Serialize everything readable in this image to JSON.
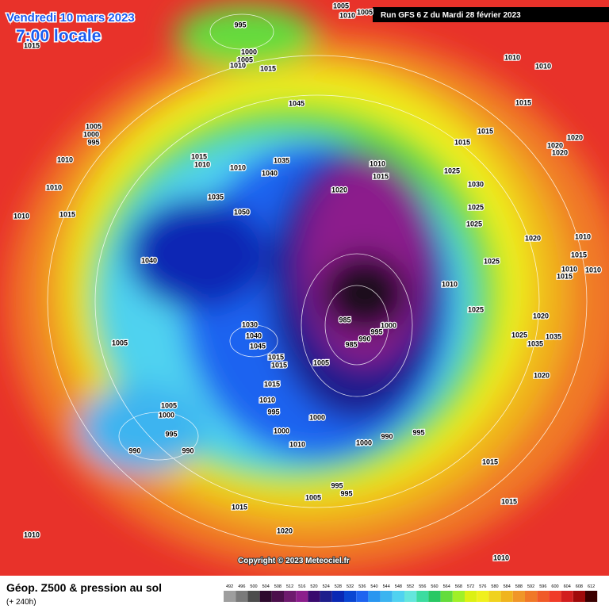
{
  "header": {
    "date": "Vendredi 10 mars 2023",
    "time": "7:00 locale",
    "run": "Run GFS 6 Z du Mardi 28 février 2023"
  },
  "map": {
    "copyright": "Copyright © 2023 Meteociel.fr",
    "isobar_labels": [
      995,
      1000,
      1005,
      1010,
      1015,
      1045,
      1015,
      1005,
      1000,
      995,
      1010,
      1010,
      1010,
      1015,
      1015,
      1010,
      1010,
      1040,
      1035,
      1035,
      1050,
      1040,
      1010,
      1015,
      1020,
      1015,
      1015,
      1025,
      1030,
      1025,
      1025,
      1025,
      1010,
      1025,
      1010,
      1010,
      1015,
      1020,
      1020,
      1020,
      1020,
      1010,
      1015,
      1010,
      1015,
      1010,
      1020,
      1025,
      1035,
      1035,
      1020,
      1030,
      1040,
      1045,
      1015,
      1015,
      1015,
      1005,
      985,
      985,
      990,
      995,
      1000,
      1005,
      1005,
      1000,
      995,
      990,
      990,
      1010,
      995,
      1000,
      1000,
      1010,
      1000,
      990,
      995,
      1015,
      995,
      995,
      1005,
      1015,
      1020,
      1010,
      1015,
      1010,
      1005,
      1010,
      1005
    ]
  },
  "footer": {
    "title": "Géop. Z500 & pression au sol",
    "subtitle": "(+ 240h)"
  },
  "legend": {
    "values": [
      492,
      496,
      500,
      504,
      508,
      512,
      516,
      520,
      524,
      528,
      532,
      536,
      540,
      544,
      548,
      552,
      556,
      560,
      564,
      568,
      572,
      576,
      580,
      584,
      588,
      592,
      596,
      600,
      604,
      608,
      612
    ],
    "colors": [
      "#9e9e9e",
      "#7a7a7a",
      "#4c4c4c",
      "#2d0a2d",
      "#4b0f4b",
      "#6e1a6e",
      "#8c1e8c",
      "#3a0a6e",
      "#1e1e8c",
      "#0a28b4",
      "#0a46d2",
      "#1e64f0",
      "#2896f0",
      "#3cb4f0",
      "#50d2f0",
      "#64e6dc",
      "#3cdca0",
      "#28c864",
      "#64dc3c",
      "#a0f028",
      "#dcf014",
      "#f0f01e",
      "#f0d21e",
      "#f0b41e",
      "#f09628",
      "#f07828",
      "#f05a28",
      "#f03c28",
      "#d21e1e",
      "#a00a0a",
      "#3c0000"
    ]
  }
}
